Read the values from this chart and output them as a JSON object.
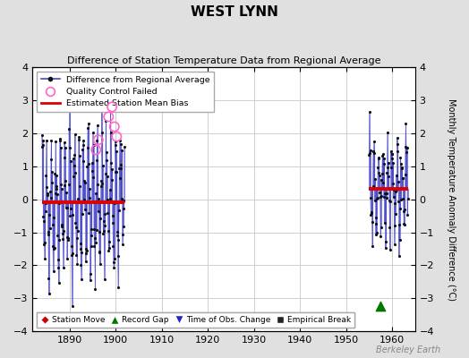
{
  "title": "WEST LYNN",
  "subtitle": "Difference of Station Temperature Data from Regional Average",
  "ylabel_right": "Monthly Temperature Anomaly Difference (°C)",
  "xlim": [
    1882,
    1965
  ],
  "ylim": [
    -4,
    4
  ],
  "yticks": [
    -4,
    -3,
    -2,
    -1,
    0,
    1,
    2,
    3,
    4
  ],
  "xticks": [
    1890,
    1900,
    1910,
    1920,
    1930,
    1940,
    1950,
    1960
  ],
  "background_color": "#e0e0e0",
  "plot_bg_color": "#ffffff",
  "grid_color": "#c8c8c8",
  "watermark": "Berkeley Earth",
  "segment1_x_start": 1884.0,
  "segment1_x_end": 1902.0,
  "segment1_bias": -0.08,
  "segment2_x_start": 1955.0,
  "segment2_x_end": 1963.5,
  "segment2_bias": 0.32,
  "seed1": 42,
  "seed2": 99,
  "line_color": "#4444cc",
  "line_alpha": 0.6,
  "dot_color": "#111111",
  "bias_color": "#dd0000",
  "qc_color": "#ff66cc",
  "station_move_color": "#cc0000",
  "record_gap_color": "#007700",
  "time_obs_color": "#2222cc",
  "emp_break_color": "#222222",
  "record_gap_x": 1957.5,
  "record_gap_y": -3.25,
  "figsize": [
    5.24,
    4.0
  ],
  "dpi": 100
}
